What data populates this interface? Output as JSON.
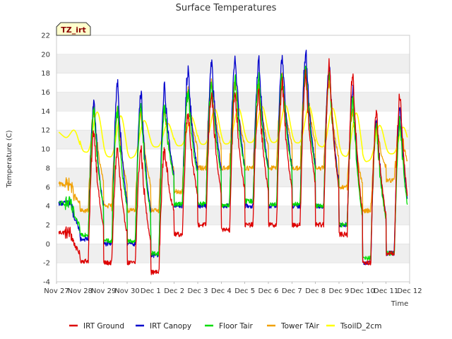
{
  "chart_data": {
    "type": "line",
    "title": "Surface Temperatures",
    "badge": "TZ_irt",
    "xlabel": "Time",
    "ylabel": "Temperature (C)",
    "x_ticks": [
      "Nov 27",
      "Nov 28",
      "Nov 29",
      "Nov 30",
      "Dec 1",
      "Dec 2",
      "Dec 3",
      "Dec 4",
      "Dec 5",
      "Dec 6",
      "Dec 7",
      "Dec 8",
      "Dec 9",
      "Dec 10",
      "Dec 11",
      "Dec 12"
    ],
    "y_ticks": [
      -4,
      -2,
      0,
      2,
      4,
      6,
      8,
      10,
      12,
      14,
      16,
      18,
      20,
      22
    ],
    "xlim": [
      "Nov 27",
      "Dec 12"
    ],
    "ylim": [
      -4,
      22
    ],
    "grid": "horizontal bands",
    "legend_position": "bottom",
    "days": [
      "Nov 27",
      "Nov 28",
      "Nov 29",
      "Nov 30",
      "Dec 1",
      "Dec 2",
      "Dec 3",
      "Dec 4",
      "Dec 5",
      "Dec 6",
      "Dec 7",
      "Dec 8",
      "Dec 9",
      "Dec 10",
      "Dec 11"
    ],
    "series": [
      {
        "name": "IRT Ground",
        "color": "#dd0000",
        "daily_min": [
          1.2,
          -1.8,
          -2.0,
          -2.0,
          -3.0,
          1.0,
          2.0,
          1.5,
          2.0,
          2.0,
          2.0,
          2.0,
          1.0,
          -2.0,
          -1.0
        ],
        "daily_max": [
          null,
          12.0,
          10.0,
          10.0,
          10.0,
          14.0,
          16.0,
          16.0,
          16.0,
          17.0,
          18.0,
          19.0,
          18.0,
          14.0,
          15.8
        ]
      },
      {
        "name": "IRT Canopy",
        "color": "#0000cc",
        "daily_min": [
          4.3,
          0.5,
          0.0,
          0.0,
          -1.2,
          4.0,
          4.0,
          4.0,
          4.0,
          4.0,
          4.0,
          4.0,
          2.0,
          -2.0,
          -1.0
        ],
        "daily_max": [
          null,
          15.0,
          17.0,
          16.2,
          16.5,
          18.3,
          19.0,
          19.8,
          19.4,
          19.8,
          20.3,
          19.0,
          16.5,
          13.5,
          14.8
        ]
      },
      {
        "name": "Floor Tair",
        "color": "#00dd00",
        "daily_min": [
          4.3,
          1.0,
          0.3,
          0.3,
          -1.0,
          4.2,
          4.2,
          4.0,
          4.5,
          4.2,
          4.2,
          4.0,
          2.0,
          -1.5,
          -1.0
        ],
        "daily_max": [
          null,
          14.0,
          14.0,
          14.5,
          14.5,
          16.0,
          17.0,
          17.5,
          17.5,
          18.0,
          18.5,
          18.0,
          15.0,
          12.5,
          13.0
        ]
      },
      {
        "name": "Tower TAir",
        "color": "#f0a000",
        "daily_min": [
          6.3,
          3.5,
          4.0,
          3.5,
          3.5,
          5.5,
          8.0,
          8.0,
          8.0,
          8.0,
          8.0,
          8.0,
          6.0,
          3.5,
          6.7
        ],
        "daily_max": [
          null,
          14.0,
          14.0,
          14.0,
          14.0,
          16.0,
          17.0,
          17.0,
          17.0,
          17.5,
          18.0,
          17.0,
          14.0,
          12.0,
          12.5
        ]
      },
      {
        "name": "TsoilD_2cm",
        "color": "#ffff00",
        "daily_min": [
          12.0,
          9.8,
          9.3,
          8.8,
          10.2,
          10.3,
          10.5,
          10.5,
          10.7,
          10.7,
          10.7,
          10.5,
          9.5,
          8.5,
          9.5
        ],
        "daily_max": [
          null,
          13.9,
          13.5,
          13.0,
          12.7,
          13.4,
          14.2,
          14.3,
          14.5,
          14.6,
          14.5,
          14.3,
          13.8,
          12.5,
          12.3
        ]
      }
    ]
  }
}
